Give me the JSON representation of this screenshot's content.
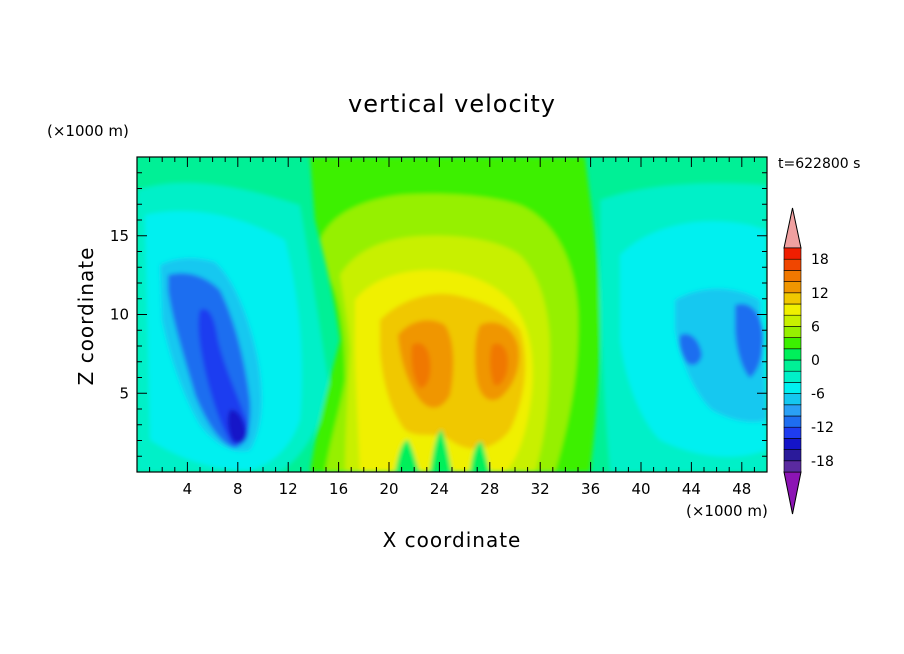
{
  "chart_data": {
    "type": "heatmap",
    "title": "vertical velocity",
    "xlabel": "X coordinate",
    "ylabel": "Z coordinate",
    "x_unit": "(×1000 m)",
    "z_unit": "(×1000 m)",
    "time_label": "t=622800 s",
    "xlim": [
      0,
      50
    ],
    "ylim": [
      0,
      20
    ],
    "x_ticks": [
      4,
      8,
      12,
      16,
      20,
      24,
      28,
      32,
      36,
      40,
      44,
      48
    ],
    "y_ticks": [
      5,
      10,
      15
    ],
    "colorbar": {
      "levels": [
        -20,
        -18,
        -16,
        -14,
        -12,
        -10,
        -8,
        -6,
        -4,
        -2,
        0,
        2,
        4,
        6,
        8,
        10,
        12,
        14,
        16,
        18,
        20
      ],
      "colors": [
        "#5a2aa0",
        "#2a1a9a",
        "#1414c8",
        "#1e3cf0",
        "#1e6ef0",
        "#2aa0f5",
        "#14c8f0",
        "#00f0f0",
        "#00f0c8",
        "#00f096",
        "#00f05a",
        "#3cf000",
        "#96f000",
        "#c8f000",
        "#f0f000",
        "#f0c800",
        "#f09600",
        "#f07800",
        "#f04600",
        "#f01e00"
      ],
      "under_color": "#8c14b4",
      "over_color": "#f0a0a0",
      "tick_labels": [
        "-18",
        "-12",
        "-6",
        "0",
        "6",
        "12",
        "18"
      ],
      "tick_values": [
        -18,
        -12,
        -6,
        0,
        6,
        12,
        18
      ]
    },
    "field_features": [
      {
        "note": "downdraft",
        "x": 8.5,
        "z": 3.0,
        "value": -16
      },
      {
        "note": "downdraft",
        "x": 6.0,
        "z": 10.5,
        "value": -12
      },
      {
        "note": "downdraft",
        "x": 46.5,
        "z": 9.5,
        "value": -10
      },
      {
        "note": "updraft",
        "x": 24.0,
        "z": 9.0,
        "value": 11
      },
      {
        "note": "updraft",
        "x": 29.0,
        "z": 8.0,
        "value": 11
      }
    ]
  }
}
